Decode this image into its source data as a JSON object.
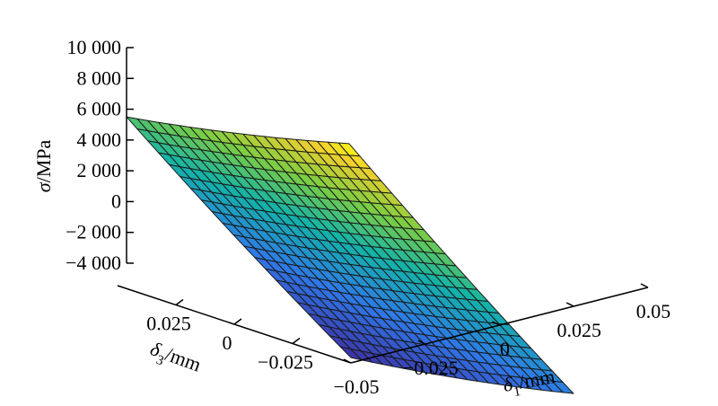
{
  "chart_data": {
    "type": "surface",
    "title": "",
    "colormap": "parula",
    "colors": {
      "low": "#3e2a9e",
      "mid_low": "#2f78e8",
      "mid": "#13b3a8",
      "mid_high": "#7dcd42",
      "high": "#f2cf2e",
      "peak": "#f9f915",
      "mesh_line": "#1a1a1a"
    },
    "x_axis": {
      "label_symbol": "δ",
      "label_subscript": "1",
      "label_unit": "/mm",
      "range": [
        -0.05,
        0.05
      ],
      "ticks": [
        -0.05,
        -0.025,
        0,
        0.025,
        0.05
      ],
      "tick_labels": [
        "−0.05",
        "−0.025",
        "0",
        "0.025",
        "0.05"
      ]
    },
    "y_axis": {
      "label_symbol": "δ",
      "label_subscript": "3",
      "label_unit": "/mm",
      "range": [
        -0.05,
        0.05
      ],
      "ticks": [
        -0.025,
        0,
        0.025
      ],
      "tick_labels": [
        "−0.025",
        "0",
        "0.025"
      ]
    },
    "z_axis": {
      "label_symbol": "σ",
      "label_unit": "/MPa",
      "range": [
        -4000,
        10000
      ],
      "ticks": [
        -4000,
        -2000,
        0,
        2000,
        4000,
        6000,
        8000,
        10000
      ],
      "tick_labels": [
        "−4 000",
        "−2 000",
        "0",
        "2 000",
        "4 000",
        "6 000",
        "8 000",
        "10 000"
      ]
    },
    "grid_resolution": 21,
    "corner_values": [
      {
        "x": -0.05,
        "y": -0.05,
        "z": -3600
      },
      {
        "x": 0.05,
        "y": -0.05,
        "z": 600
      },
      {
        "x": -0.05,
        "y": 0.05,
        "z": 5500
      },
      {
        "x": 0.05,
        "y": 0.05,
        "z": 10300
      }
    ],
    "grid": false
  }
}
